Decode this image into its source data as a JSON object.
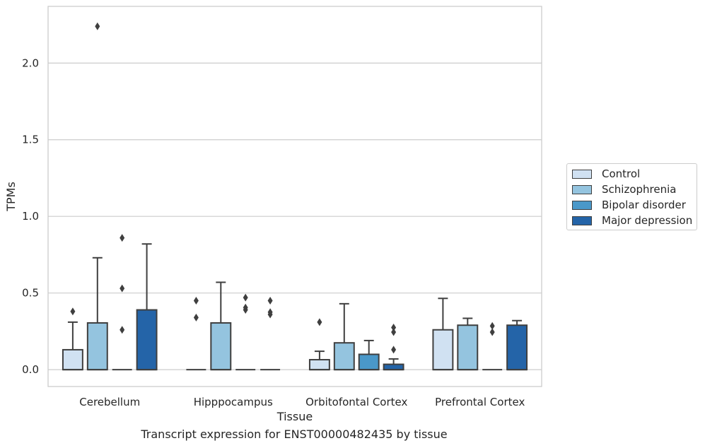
{
  "chart_data": {
    "type": "box",
    "xlabel": "Tissue",
    "ylabel": "TPMs",
    "caption": "Transcript expression for ENST00000482435 by tissue",
    "ylim": [
      -0.11,
      2.37
    ],
    "yticks": [
      0.0,
      0.5,
      1.0,
      1.5,
      2.0
    ],
    "ytick_labels": [
      "0.0",
      "0.5",
      "1.0",
      "1.5",
      "2.0"
    ],
    "categories": [
      "Cerebellum",
      "Hipppocampus",
      "Orbitofontal Cortex",
      "Prefrontal Cortex"
    ],
    "grid": "horizontal",
    "legend_position": "right",
    "series": [
      {
        "name": "Control",
        "color": "#d0e1f2",
        "boxes": [
          {
            "q1": 0.0,
            "median": 0.0,
            "q3": 0.13,
            "lo": 0.0,
            "hi": 0.31,
            "outliers": [
              0.38
            ]
          },
          {
            "q1": 0.0,
            "median": 0.0,
            "q3": 0.0,
            "lo": 0.0,
            "hi": 0.0,
            "outliers": [
              0.34,
              0.45
            ]
          },
          {
            "q1": 0.0,
            "median": 0.0,
            "q3": 0.065,
            "lo": 0.0,
            "hi": 0.12,
            "outliers": [
              0.31
            ]
          },
          {
            "q1": 0.0,
            "median": 0.0,
            "q3": 0.26,
            "lo": 0.0,
            "hi": 0.465,
            "outliers": []
          }
        ]
      },
      {
        "name": "Schizophrenia",
        "color": "#94c4df",
        "boxes": [
          {
            "q1": 0.0,
            "median": 0.0,
            "q3": 0.305,
            "lo": 0.0,
            "hi": 0.73,
            "outliers": [
              2.24
            ]
          },
          {
            "q1": 0.0,
            "median": 0.0,
            "q3": 0.305,
            "lo": 0.0,
            "hi": 0.57,
            "outliers": []
          },
          {
            "q1": 0.0,
            "median": 0.0,
            "q3": 0.175,
            "lo": 0.0,
            "hi": 0.43,
            "outliers": []
          },
          {
            "q1": 0.0,
            "median": 0.0,
            "q3": 0.29,
            "lo": 0.0,
            "hi": 0.335,
            "outliers": []
          }
        ]
      },
      {
        "name": "Bipolar disorder",
        "color": "#4a98c9",
        "boxes": [
          {
            "q1": 0.0,
            "median": 0.0,
            "q3": 0.0,
            "lo": 0.0,
            "hi": 0.0,
            "outliers": [
              0.26,
              0.53,
              0.86
            ]
          },
          {
            "q1": 0.0,
            "median": 0.0,
            "q3": 0.0,
            "lo": 0.0,
            "hi": 0.0,
            "outliers": [
              0.39,
              0.405,
              0.47
            ]
          },
          {
            "q1": 0.0,
            "median": 0.0,
            "q3": 0.1,
            "lo": 0.0,
            "hi": 0.19,
            "outliers": []
          },
          {
            "q1": 0.0,
            "median": 0.0,
            "q3": 0.0,
            "lo": 0.0,
            "hi": 0.0,
            "outliers": [
              0.245,
              0.285
            ]
          }
        ]
      },
      {
        "name": "Major depression",
        "color": "#2464a8",
        "boxes": [
          {
            "q1": 0.0,
            "median": 0.0,
            "q3": 0.39,
            "lo": 0.0,
            "hi": 0.82,
            "outliers": []
          },
          {
            "q1": 0.0,
            "median": 0.0,
            "q3": 0.0,
            "lo": 0.0,
            "hi": 0.0,
            "outliers": [
              0.36,
              0.375,
              0.45
            ]
          },
          {
            "q1": 0.0,
            "median": 0.0,
            "q3": 0.035,
            "lo": 0.0,
            "hi": 0.07,
            "outliers": [
              0.13,
              0.245,
              0.275
            ]
          },
          {
            "q1": 0.0,
            "median": 0.0,
            "q3": 0.29,
            "lo": 0.0,
            "hi": 0.32,
            "outliers": []
          }
        ]
      }
    ]
  }
}
